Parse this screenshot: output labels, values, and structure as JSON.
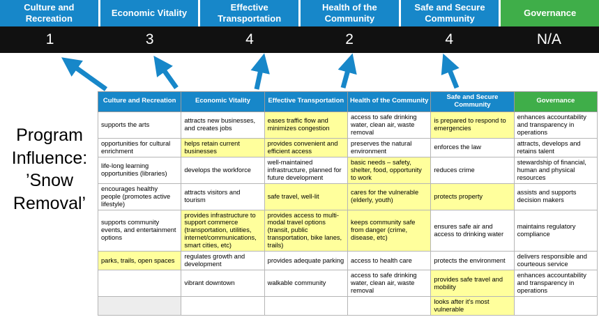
{
  "title": "Program Influence: ’Snow Removal’",
  "colors": {
    "blue": "#1787c9",
    "green": "#3fae49",
    "highlight": "#ffff9c",
    "scorebar_bg": "#111111",
    "arrow": "#1787c9"
  },
  "scoreboard": {
    "columns": [
      {
        "label": "Culture and Recreation",
        "score": "1",
        "color": "blue"
      },
      {
        "label": "Economic Vitality",
        "score": "3",
        "color": "blue"
      },
      {
        "label": "Effective Transportation",
        "score": "4",
        "color": "blue"
      },
      {
        "label": "Health of the Community",
        "score": "2",
        "color": "blue"
      },
      {
        "label": "Safe and Secure Community",
        "score": "4",
        "color": "blue"
      },
      {
        "label": "Governance",
        "score": "N/A",
        "color": "green"
      }
    ]
  },
  "table": {
    "headers": [
      {
        "label": "Culture and Recreation",
        "color": "blue"
      },
      {
        "label": "Economic Vitality",
        "color": "blue"
      },
      {
        "label": "Effective Transportation",
        "color": "blue"
      },
      {
        "label": "Health of the Community",
        "color": "blue"
      },
      {
        "label": "Safe and Secure Community",
        "color": "blue"
      },
      {
        "label": "Governance",
        "color": "green"
      }
    ],
    "rows": [
      [
        {
          "t": "supports the arts",
          "h": false
        },
        {
          "t": "attracts new businesses, and creates jobs",
          "h": false
        },
        {
          "t": "eases traffic flow and minimizes congestion",
          "h": true
        },
        {
          "t": "access to safe drinking water, clean air, waste removal",
          "h": false
        },
        {
          "t": "is prepared to respond to emergencies",
          "h": true
        },
        {
          "t": "enhances accountability and transparency in operations",
          "h": false
        }
      ],
      [
        {
          "t": "opportunities for cultural enrichment",
          "h": false
        },
        {
          "t": "helps retain current businesses",
          "h": true
        },
        {
          "t": "provides convenient and efficient access",
          "h": true
        },
        {
          "t": "preserves the natural environment",
          "h": false
        },
        {
          "t": "enforces the law",
          "h": false
        },
        {
          "t": "attracts, develops and retains talent",
          "h": false
        }
      ],
      [
        {
          "t": "life-long learning opportunities (libraries)",
          "h": false
        },
        {
          "t": "develops the workforce",
          "h": false
        },
        {
          "t": "well-maintained infrastructure, planned for future development",
          "h": false
        },
        {
          "t": "basic needs – safety, shelter, food, opportunity to work",
          "h": true
        },
        {
          "t": "reduces crime",
          "h": false
        },
        {
          "t": "stewardship of financial, human and physical resources",
          "h": false
        }
      ],
      [
        {
          "t": "encourages healthy people (promotes active lifestyle)",
          "h": false
        },
        {
          "t": "attracts visitors and tourism",
          "h": false
        },
        {
          "t": "safe travel, well-lit",
          "h": true
        },
        {
          "t": "cares for the vulnerable (elderly, youth)",
          "h": true
        },
        {
          "t": "protects property",
          "h": true
        },
        {
          "t": "assists and supports decision makers",
          "h": false
        }
      ],
      [
        {
          "t": "supports community events, and entertainment options",
          "h": false
        },
        {
          "t": "provides infrastructure to support commerce (transportation, utilities, internet/communications, smart cities, etc)",
          "h": true
        },
        {
          "t": "provides access to multi-modal travel options (transit, public transportation, bike lanes, trails)",
          "h": true
        },
        {
          "t": "keeps community safe from danger (crime, disease, etc)",
          "h": true
        },
        {
          "t": "ensures safe air and access to drinking water",
          "h": false
        },
        {
          "t": "maintains regulatory compliance",
          "h": false
        }
      ],
      [
        {
          "t": "parks, trails, open spaces",
          "h": true
        },
        {
          "t": "regulates growth and development",
          "h": false
        },
        {
          "t": "provides adequate parking",
          "h": false
        },
        {
          "t": "access to health care",
          "h": false
        },
        {
          "t": "protects the environment",
          "h": false
        },
        {
          "t": "delivers responsible and courteous service",
          "h": false
        }
      ],
      [
        {
          "t": "",
          "h": false
        },
        {
          "t": "vibrant downtown",
          "h": false
        },
        {
          "t": "walkable community",
          "h": false
        },
        {
          "t": "access to safe drinking water, clean air, waste removal",
          "h": false
        },
        {
          "t": "provides safe travel and mobility",
          "h": true
        },
        {
          "t": "enhances accountability and transparency in operations",
          "h": false
        }
      ],
      [
        {
          "t": "",
          "h": false,
          "s": true
        },
        {
          "t": "",
          "h": false
        },
        {
          "t": "",
          "h": false
        },
        {
          "t": "",
          "h": false
        },
        {
          "t": "looks after it's most vulnerable",
          "h": true
        },
        {
          "t": "",
          "h": false
        }
      ]
    ]
  }
}
